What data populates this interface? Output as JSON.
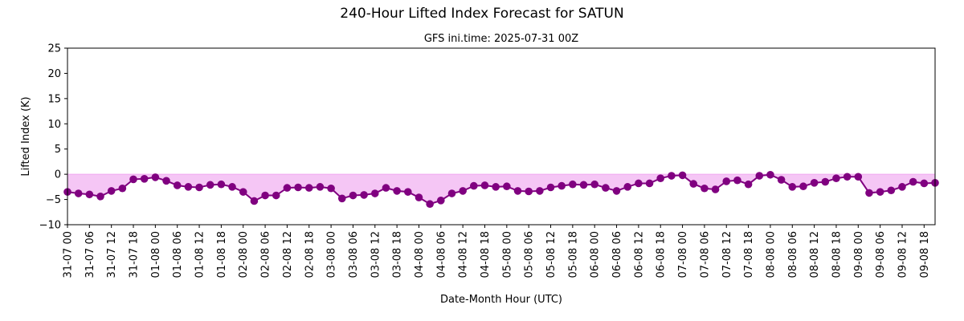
{
  "figure": {
    "title": "240-Hour Lifted Index Forecast for SATUN",
    "subtitle": "GFS ini.time: 2025-07-31 00Z"
  },
  "chart_data": {
    "type": "line",
    "title": "240-Hour Lifted Index Forecast for SATUN",
    "subtitle": "GFS ini.time: 2025-07-31 00Z",
    "xlabel": "Date-Month Hour (UTC)",
    "ylabel": "Lifted Index (K)",
    "ylim": [
      -10,
      25
    ],
    "yticks": [
      -10,
      -5,
      0,
      5,
      10,
      15,
      20,
      25
    ],
    "grid": false,
    "x_step_hours": 3,
    "xtick_labels": [
      "31-07 00",
      "31-07 06",
      "31-07 12",
      "31-07 18",
      "01-08 00",
      "01-08 06",
      "01-08 12",
      "01-08 18",
      "02-08 00",
      "02-08 06",
      "02-08 12",
      "02-08 18",
      "03-08 00",
      "03-08 06",
      "03-08 12",
      "03-08 18",
      "04-08 00",
      "04-08 06",
      "04-08 12",
      "04-08 18",
      "05-08 00",
      "05-08 06",
      "05-08 12",
      "05-08 18",
      "06-08 00",
      "06-08 06",
      "06-08 12",
      "06-08 18",
      "07-08 00",
      "07-08 06",
      "07-08 12",
      "07-08 18",
      "08-08 00",
      "08-08 06",
      "08-08 12",
      "08-08 18",
      "09-08 00",
      "09-08 06",
      "09-08 12",
      "09-08 18"
    ],
    "series": [
      {
        "values": [
          -3.5,
          -3.8,
          -4.0,
          -4.4,
          -3.3,
          -2.8,
          -1.0,
          -0.9,
          -0.6,
          -1.3,
          -2.2,
          -2.5,
          -2.6,
          -2.1,
          -2.0,
          -2.5,
          -3.5,
          -5.3,
          -4.2,
          -4.2,
          -2.7,
          -2.6,
          -2.7,
          -2.5,
          -2.8,
          -4.8,
          -4.2,
          -4.1,
          -3.8,
          -2.7,
          -3.3,
          -3.5,
          -4.6,
          -5.9,
          -5.2,
          -3.8,
          -3.3,
          -2.3,
          -2.2,
          -2.5,
          -2.4,
          -3.3,
          -3.4,
          -3.3,
          -2.6,
          -2.3,
          -2.0,
          -2.1,
          -2.0,
          -2.7,
          -3.3,
          -2.5,
          -1.8,
          -1.8,
          -0.8,
          -0.3,
          -0.2,
          -1.9,
          -2.8,
          -3.0,
          -1.4,
          -1.2,
          -2.0,
          -0.3,
          -0.1,
          -1.1,
          -2.5,
          -2.4,
          -1.7,
          -1.5,
          -0.8,
          -0.5,
          -0.5,
          -3.7,
          -3.5,
          -3.2,
          -2.5,
          -1.5,
          -1.8,
          -1.7
        ]
      }
    ],
    "colors": {
      "line": "#800080",
      "fill": "#f0a8f0",
      "axes": "#000000"
    }
  }
}
